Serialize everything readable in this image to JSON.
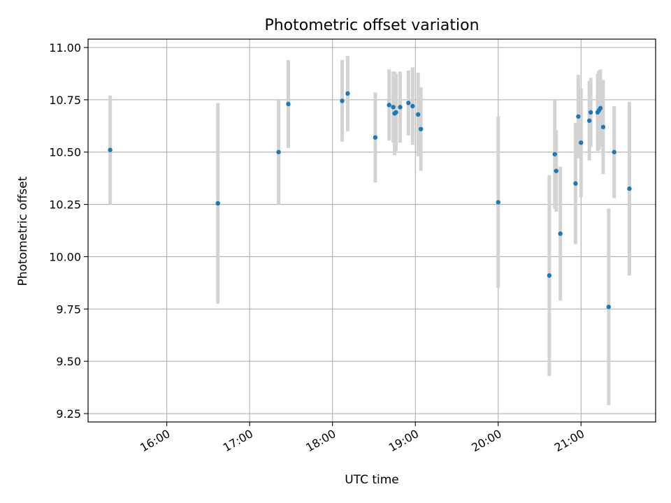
{
  "chart_data": {
    "type": "scatter",
    "title": "Photometric offset variation",
    "xlabel": "UTC time",
    "ylabel": "Photometric offset",
    "x_ticks": [
      "16:00",
      "17:00",
      "18:00",
      "19:00",
      "20:00",
      "21:00"
    ],
    "y_ticks": [
      "9.25",
      "9.50",
      "9.75",
      "10.00",
      "10.25",
      "10.50",
      "10.75",
      "11.00"
    ],
    "xlim": [
      "15:03",
      "21:54"
    ],
    "ylim": [
      9.21,
      11.04
    ],
    "grid": true,
    "error_bar_color": "#d3d3d3",
    "marker_color": "#1f77b4",
    "series": [
      {
        "points": [
          {
            "x": "15:19",
            "y": 10.51,
            "err": 0.26
          },
          {
            "x": "16:37",
            "y": 10.255,
            "err": 0.48
          },
          {
            "x": "17:21",
            "y": 10.5,
            "err": 0.25
          },
          {
            "x": "17:28",
            "y": 10.73,
            "err": 0.21
          },
          {
            "x": "18:07",
            "y": 10.745,
            "err": 0.195
          },
          {
            "x": "18:11",
            "y": 10.78,
            "err": 0.18
          },
          {
            "x": "18:31",
            "y": 10.57,
            "err": 0.215
          },
          {
            "x": "18:41",
            "y": 10.725,
            "err": 0.17
          },
          {
            "x": "18:44",
            "y": 10.715,
            "err": 0.17
          },
          {
            "x": "18:45",
            "y": 10.685,
            "err": 0.2
          },
          {
            "x": "18:46",
            "y": 10.69,
            "err": 0.185
          },
          {
            "x": "18:49",
            "y": 10.715,
            "err": 0.17
          },
          {
            "x": "18:55",
            "y": 10.735,
            "err": 0.155
          },
          {
            "x": "18:58",
            "y": 10.72,
            "err": 0.185
          },
          {
            "x": "19:02",
            "y": 10.68,
            "err": 0.2
          },
          {
            "x": "19:04",
            "y": 10.61,
            "err": 0.2
          },
          {
            "x": "20:00",
            "y": 10.26,
            "err": 0.41
          },
          {
            "x": "20:37",
            "y": 9.91,
            "err": 0.48
          },
          {
            "x": "20:41",
            "y": 10.49,
            "err": 0.26
          },
          {
            "x": "20:42",
            "y": 10.41,
            "err": 0.195
          },
          {
            "x": "20:45",
            "y": 10.11,
            "err": 0.32
          },
          {
            "x": "20:56",
            "y": 10.35,
            "err": 0.29
          },
          {
            "x": "20:58",
            "y": 10.67,
            "err": 0.2
          },
          {
            "x": "21:00",
            "y": 10.545,
            "err": 0.26
          },
          {
            "x": "21:06",
            "y": 10.65,
            "err": 0.19
          },
          {
            "x": "21:07",
            "y": 10.69,
            "err": 0.165
          },
          {
            "x": "21:12",
            "y": 10.69,
            "err": 0.185
          },
          {
            "x": "21:13",
            "y": 10.7,
            "err": 0.19
          },
          {
            "x": "21:14",
            "y": 10.71,
            "err": 0.185
          },
          {
            "x": "21:16",
            "y": 10.62,
            "err": 0.225
          },
          {
            "x": "21:20",
            "y": 9.76,
            "err": 0.47
          },
          {
            "x": "21:24",
            "y": 10.5,
            "err": 0.22
          },
          {
            "x": "21:35",
            "y": 10.325,
            "err": 0.415
          }
        ]
      }
    ]
  }
}
